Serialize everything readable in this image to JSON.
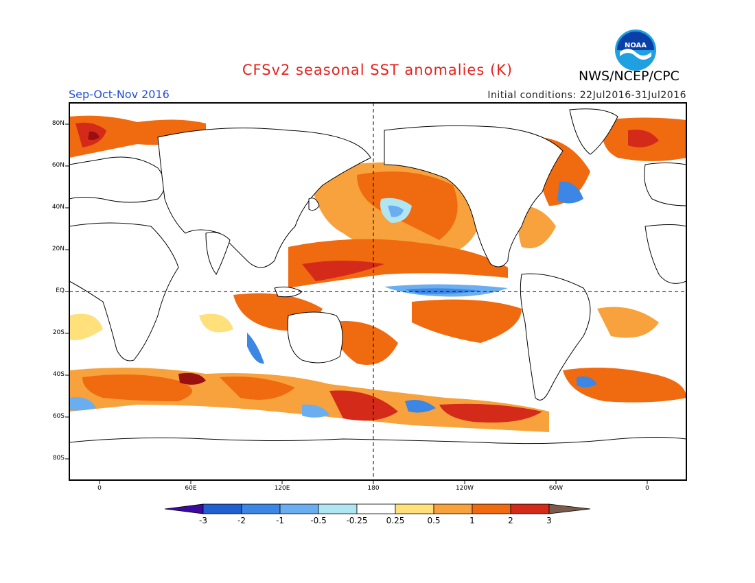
{
  "header": {
    "title": "CFSv2 seasonal SST anomalies (K)",
    "agency": "NWS/NCEP/CPC",
    "period": "Sep-Oct-Nov 2016",
    "initial_conditions": "Initial conditions: 22Jul2016-31Jul2016",
    "logo_text": "NOAA"
  },
  "axes": {
    "lat_ticks": [
      "80N",
      "60N",
      "40N",
      "20N",
      "EQ",
      "20S",
      "40S",
      "60S",
      "80S"
    ],
    "lon_ticks": [
      "0",
      "60E",
      "120E",
      "180",
      "120W",
      "60W",
      "0"
    ]
  },
  "colorbar": {
    "labels": [
      "-3",
      "-2",
      "-1",
      "-0.5",
      "-0.25",
      "0.25",
      "0.5",
      "1",
      "2",
      "3"
    ],
    "colors": [
      "#3a0aa0",
      "#1f5fcf",
      "#3c86e6",
      "#6aaef0",
      "#b0e6f2",
      "#ffffff",
      "#ffe07a",
      "#f7a23c",
      "#f06a10",
      "#d42a1a",
      "#9a0f0f",
      "#7a5a4a"
    ]
  }
}
